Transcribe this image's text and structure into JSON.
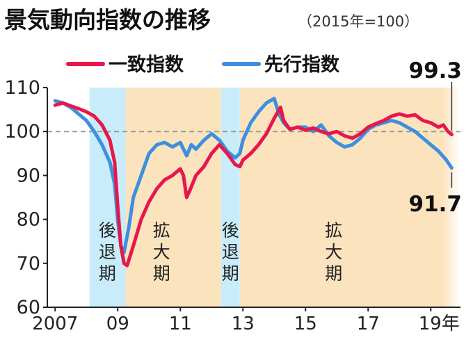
{
  "chart_data": {
    "type": "line",
    "title": "景気動向指数の推移",
    "subtitle": "（2015年=100）",
    "ylim": [
      60,
      110
    ],
    "yticks": [
      60,
      70,
      80,
      90,
      100,
      110
    ],
    "reference_line": 100,
    "x_tick_labels": [
      "2007",
      "09",
      "11",
      "13",
      "15",
      "17",
      "19年"
    ],
    "x_tick_years": [
      2007,
      2009,
      2011,
      2013,
      2015,
      2017,
      2019
    ],
    "xlim": [
      2006.75,
      2019.95
    ],
    "phases": [
      {
        "label": "後退期",
        "type": "recession",
        "start": 2008.1,
        "end": 2009.25
      },
      {
        "label": "拡大期",
        "type": "expansion",
        "start": 2009.25,
        "end": 2012.3
      },
      {
        "label": "後退期",
        "type": "recession",
        "start": 2012.3,
        "end": 2012.9
      },
      {
        "label": "拡大期",
        "type": "expansion",
        "start": 2012.9,
        "end": 2019.95
      }
    ],
    "series": [
      {
        "name": "一致指数",
        "color": "#e8174b",
        "end_label": "99.3",
        "points": [
          [
            2007.0,
            106.0
          ],
          [
            2007.25,
            106.5
          ],
          [
            2007.5,
            105.8
          ],
          [
            2007.75,
            105.2
          ],
          [
            2008.0,
            104.5
          ],
          [
            2008.25,
            103.5
          ],
          [
            2008.5,
            101.5
          ],
          [
            2008.75,
            98.0
          ],
          [
            2008.9,
            93.0
          ],
          [
            2009.0,
            83.0
          ],
          [
            2009.1,
            74.0
          ],
          [
            2009.2,
            70.0
          ],
          [
            2009.3,
            69.5
          ],
          [
            2009.5,
            74.0
          ],
          [
            2009.75,
            80.0
          ],
          [
            2010.0,
            84.0
          ],
          [
            2010.25,
            87.0
          ],
          [
            2010.5,
            89.0
          ],
          [
            2010.75,
            90.0
          ],
          [
            2011.0,
            91.5
          ],
          [
            2011.1,
            90.0
          ],
          [
            2011.2,
            85.0
          ],
          [
            2011.3,
            86.5
          ],
          [
            2011.5,
            90.0
          ],
          [
            2011.75,
            92.0
          ],
          [
            2012.0,
            95.0
          ],
          [
            2012.25,
            97.0
          ],
          [
            2012.5,
            95.0
          ],
          [
            2012.75,
            92.5
          ],
          [
            2012.9,
            92.0
          ],
          [
            2013.0,
            93.5
          ],
          [
            2013.25,
            95.0
          ],
          [
            2013.5,
            97.0
          ],
          [
            2013.75,
            99.5
          ],
          [
            2014.0,
            103.0
          ],
          [
            2014.2,
            105.5
          ],
          [
            2014.3,
            102.5
          ],
          [
            2014.5,
            100.5
          ],
          [
            2014.75,
            101.0
          ],
          [
            2015.0,
            100.3
          ],
          [
            2015.25,
            100.8
          ],
          [
            2015.5,
            100.0
          ],
          [
            2015.75,
            99.5
          ],
          [
            2016.0,
            100.0
          ],
          [
            2016.25,
            99.0
          ],
          [
            2016.5,
            98.5
          ],
          [
            2016.75,
            99.5
          ],
          [
            2017.0,
            101.0
          ],
          [
            2017.25,
            101.8
          ],
          [
            2017.5,
            102.5
          ],
          [
            2017.75,
            103.5
          ],
          [
            2018.0,
            104.0
          ],
          [
            2018.25,
            103.5
          ],
          [
            2018.5,
            103.8
          ],
          [
            2018.75,
            102.5
          ],
          [
            2019.0,
            102.0
          ],
          [
            2019.25,
            101.0
          ],
          [
            2019.4,
            101.5
          ],
          [
            2019.55,
            100.0
          ],
          [
            2019.67,
            99.3
          ]
        ]
      },
      {
        "name": "先行指数",
        "color": "#3d8fe0",
        "end_label": "91.7",
        "points": [
          [
            2007.0,
            107.0
          ],
          [
            2007.25,
            106.5
          ],
          [
            2007.5,
            105.5
          ],
          [
            2007.75,
            104.0
          ],
          [
            2008.0,
            102.5
          ],
          [
            2008.25,
            100.0
          ],
          [
            2008.5,
            97.0
          ],
          [
            2008.75,
            93.0
          ],
          [
            2008.9,
            88.0
          ],
          [
            2009.0,
            80.0
          ],
          [
            2009.1,
            74.0
          ],
          [
            2009.2,
            72.5
          ],
          [
            2009.35,
            78.0
          ],
          [
            2009.5,
            85.0
          ],
          [
            2009.75,
            90.0
          ],
          [
            2010.0,
            95.0
          ],
          [
            2010.25,
            97.0
          ],
          [
            2010.5,
            97.5
          ],
          [
            2010.75,
            96.5
          ],
          [
            2011.0,
            97.5
          ],
          [
            2011.2,
            94.5
          ],
          [
            2011.35,
            97.0
          ],
          [
            2011.5,
            96.0
          ],
          [
            2011.75,
            98.0
          ],
          [
            2012.0,
            99.5
          ],
          [
            2012.25,
            98.0
          ],
          [
            2012.5,
            95.5
          ],
          [
            2012.75,
            94.0
          ],
          [
            2012.9,
            95.0
          ],
          [
            2013.0,
            98.0
          ],
          [
            2013.25,
            102.0
          ],
          [
            2013.5,
            104.5
          ],
          [
            2013.75,
            106.5
          ],
          [
            2014.0,
            107.5
          ],
          [
            2014.15,
            104.0
          ],
          [
            2014.3,
            102.0
          ],
          [
            2014.5,
            100.5
          ],
          [
            2014.75,
            101.0
          ],
          [
            2015.0,
            101.0
          ],
          [
            2015.25,
            100.0
          ],
          [
            2015.5,
            101.5
          ],
          [
            2015.75,
            99.0
          ],
          [
            2016.0,
            97.5
          ],
          [
            2016.25,
            96.5
          ],
          [
            2016.5,
            97.0
          ],
          [
            2016.75,
            98.5
          ],
          [
            2017.0,
            100.5
          ],
          [
            2017.25,
            101.5
          ],
          [
            2017.5,
            102.0
          ],
          [
            2017.75,
            102.5
          ],
          [
            2018.0,
            102.0
          ],
          [
            2018.25,
            101.0
          ],
          [
            2018.5,
            100.0
          ],
          [
            2018.75,
            98.5
          ],
          [
            2019.0,
            97.0
          ],
          [
            2019.25,
            95.5
          ],
          [
            2019.5,
            93.5
          ],
          [
            2019.67,
            91.7
          ]
        ]
      }
    ]
  }
}
